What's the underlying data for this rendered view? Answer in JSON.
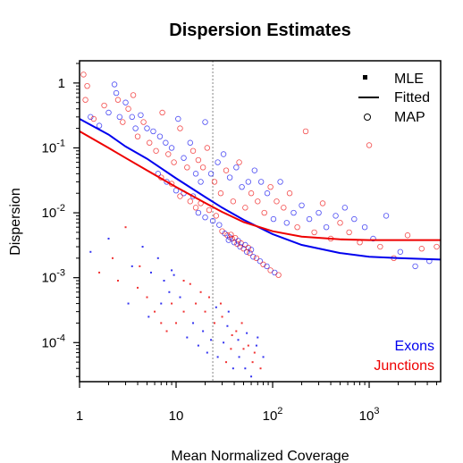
{
  "chart_data": {
    "type": "scatter",
    "title": "Dispersion Estimates",
    "xlabel": "Mean Normalized Coverage",
    "ylabel": "Dispersion",
    "x_scale": "log",
    "y_scale": "log",
    "xlim": [
      1,
      5500
    ],
    "ylim": [
      2.5e-05,
      2.2
    ],
    "x_ticks": [
      {
        "value": 1,
        "base": "1",
        "exp": ""
      },
      {
        "value": 10,
        "base": "10",
        "exp": ""
      },
      {
        "value": 100,
        "base": "10",
        "exp": "2"
      },
      {
        "value": 1000,
        "base": "10",
        "exp": "3"
      }
    ],
    "y_ticks": [
      {
        "value": 1,
        "base": "1",
        "exp": ""
      },
      {
        "value": 0.1,
        "base": "10",
        "exp": "-1"
      },
      {
        "value": 0.01,
        "base": "10",
        "exp": "-2"
      },
      {
        "value": 0.001,
        "base": "10",
        "exp": "-3"
      },
      {
        "value": 0.0001,
        "base": "10",
        "exp": "-4"
      }
    ],
    "reference_line_x": 24,
    "legend": {
      "position": "top-right",
      "entries": [
        {
          "symbol": "square",
          "label": "MLE"
        },
        {
          "symbol": "line",
          "label": "Fitted"
        },
        {
          "symbol": "circle",
          "label": "MAP"
        }
      ]
    },
    "group_labels": [
      {
        "label": "Exons",
        "color": "#0000ee"
      },
      {
        "label": "Junctions",
        "color": "#ee0000"
      }
    ],
    "series": [
      {
        "name": "Exons",
        "color": "#0000ee",
        "fitted": {
          "x": [
            1,
            2,
            3,
            5,
            10,
            20,
            30,
            50,
            100,
            200,
            500,
            1000,
            2000,
            5500
          ],
          "y": [
            0.28,
            0.16,
            0.105,
            0.068,
            0.034,
            0.0175,
            0.012,
            0.0078,
            0.0047,
            0.0032,
            0.0024,
            0.0021,
            0.002,
            0.0019
          ]
        }
      },
      {
        "name": "Junctions",
        "color": "#ee0000",
        "fitted": {
          "x": [
            1,
            2,
            3,
            5,
            10,
            20,
            30,
            50,
            100,
            200,
            500,
            1000,
            2000,
            5500
          ],
          "y": [
            0.18,
            0.1,
            0.07,
            0.045,
            0.025,
            0.0142,
            0.0103,
            0.0072,
            0.0052,
            0.0043,
            0.0039,
            0.0038,
            0.0038,
            0.0038
          ]
        }
      }
    ],
    "scatter_points": {
      "map_circles": [
        [
          1.1,
          1.35,
          "r"
        ],
        [
          1.2,
          0.9,
          "r"
        ],
        [
          1.15,
          0.55,
          "r"
        ],
        [
          1.3,
          0.3,
          "b"
        ],
        [
          1.4,
          0.28,
          "r"
        ],
        [
          1.6,
          0.22,
          "b"
        ],
        [
          1.8,
          0.45,
          "r"
        ],
        [
          2.0,
          0.35,
          "b"
        ],
        [
          2.3,
          0.95,
          "b"
        ],
        [
          2.4,
          0.7,
          "b"
        ],
        [
          2.5,
          0.55,
          "r"
        ],
        [
          2.6,
          0.3,
          "b"
        ],
        [
          2.8,
          0.25,
          "r"
        ],
        [
          3.0,
          0.5,
          "b"
        ],
        [
          3.2,
          0.4,
          "r"
        ],
        [
          3.5,
          0.3,
          "b"
        ],
        [
          3.6,
          0.65,
          "r"
        ],
        [
          3.8,
          0.2,
          "b"
        ],
        [
          4.0,
          0.15,
          "r"
        ],
        [
          4.3,
          0.32,
          "b"
        ],
        [
          4.6,
          0.25,
          "r"
        ],
        [
          5.0,
          0.2,
          "b"
        ],
        [
          5.3,
          0.12,
          "r"
        ],
        [
          5.8,
          0.18,
          "b"
        ],
        [
          6.2,
          0.09,
          "r"
        ],
        [
          6.8,
          0.15,
          "b"
        ],
        [
          7.2,
          0.35,
          "r"
        ],
        [
          7.8,
          0.12,
          "b"
        ],
        [
          8.3,
          0.08,
          "r"
        ],
        [
          9.0,
          0.1,
          "b"
        ],
        [
          9.5,
          0.06,
          "r"
        ],
        [
          10.5,
          0.28,
          "b"
        ],
        [
          11,
          0.2,
          "r"
        ],
        [
          12,
          0.07,
          "b"
        ],
        [
          13,
          0.05,
          "r"
        ],
        [
          14,
          0.12,
          "b"
        ],
        [
          15,
          0.09,
          "r"
        ],
        [
          16,
          0.04,
          "b"
        ],
        [
          17,
          0.065,
          "r"
        ],
        [
          18,
          0.03,
          "b"
        ],
        [
          19,
          0.05,
          "r"
        ],
        [
          20,
          0.25,
          "b"
        ],
        [
          21,
          0.1,
          "r"
        ],
        [
          23,
          0.04,
          "b"
        ],
        [
          25,
          0.03,
          "r"
        ],
        [
          27,
          0.06,
          "b"
        ],
        [
          29,
          0.02,
          "r"
        ],
        [
          31,
          0.08,
          "b"
        ],
        [
          33,
          0.045,
          "r"
        ],
        [
          36,
          0.035,
          "b"
        ],
        [
          39,
          0.015,
          "r"
        ],
        [
          42,
          0.05,
          "b"
        ],
        [
          45,
          0.06,
          "r"
        ],
        [
          48,
          0.025,
          "b"
        ],
        [
          52,
          0.012,
          "r"
        ],
        [
          56,
          0.03,
          "b"
        ],
        [
          60,
          0.02,
          "r"
        ],
        [
          65,
          0.045,
          "b"
        ],
        [
          70,
          0.015,
          "r"
        ],
        [
          76,
          0.03,
          "b"
        ],
        [
          82,
          0.01,
          "r"
        ],
        [
          88,
          0.02,
          "b"
        ],
        [
          95,
          0.025,
          "r"
        ],
        [
          102,
          0.008,
          "b"
        ],
        [
          110,
          0.015,
          "r"
        ],
        [
          120,
          0.03,
          "b"
        ],
        [
          130,
          0.012,
          "r"
        ],
        [
          140,
          0.007,
          "b"
        ],
        [
          150,
          0.02,
          "r"
        ],
        [
          165,
          0.01,
          "b"
        ],
        [
          180,
          0.006,
          "r"
        ],
        [
          200,
          0.013,
          "b"
        ],
        [
          220,
          0.18,
          "r"
        ],
        [
          240,
          0.008,
          "b"
        ],
        [
          270,
          0.005,
          "r"
        ],
        [
          300,
          0.01,
          "b"
        ],
        [
          330,
          0.014,
          "r"
        ],
        [
          360,
          0.006,
          "b"
        ],
        [
          400,
          0.004,
          "r"
        ],
        [
          450,
          0.009,
          "b"
        ],
        [
          500,
          0.007,
          "r"
        ],
        [
          560,
          0.012,
          "b"
        ],
        [
          620,
          0.005,
          "r"
        ],
        [
          700,
          0.008,
          "b"
        ],
        [
          800,
          0.0035,
          "r"
        ],
        [
          900,
          0.006,
          "b"
        ],
        [
          1000,
          0.11,
          "r"
        ],
        [
          1100,
          0.004,
          "b"
        ],
        [
          1300,
          0.003,
          "r"
        ],
        [
          1500,
          0.009,
          "b"
        ],
        [
          1800,
          0.002,
          "r"
        ],
        [
          2100,
          0.0025,
          "b"
        ],
        [
          2500,
          0.0045,
          "r"
        ],
        [
          3000,
          0.0015,
          "b"
        ],
        [
          3500,
          0.0028,
          "r"
        ],
        [
          4200,
          0.0018,
          "b"
        ],
        [
          5000,
          0.003,
          "r"
        ],
        [
          14,
          0.015,
          "r"
        ],
        [
          15,
          0.018,
          "b"
        ],
        [
          16,
          0.012,
          "r"
        ],
        [
          17,
          0.01,
          "b"
        ],
        [
          18,
          0.014,
          "r"
        ],
        [
          20,
          0.0085,
          "b"
        ],
        [
          22,
          0.011,
          "r"
        ],
        [
          24,
          0.0075,
          "b"
        ],
        [
          26,
          0.009,
          "r"
        ],
        [
          28,
          0.0065,
          "b"
        ],
        [
          30,
          0.0052,
          "r"
        ],
        [
          32,
          0.0048,
          "b"
        ],
        [
          34,
          0.0045,
          "r"
        ],
        [
          36,
          0.0042,
          "b"
        ],
        [
          38,
          0.004,
          "r"
        ],
        [
          40,
          0.0035,
          "b"
        ],
        [
          43,
          0.0033,
          "r"
        ],
        [
          46,
          0.003,
          "b"
        ],
        [
          50,
          0.0028,
          "r"
        ],
        [
          54,
          0.0025,
          "b"
        ],
        [
          58,
          0.0024,
          "r"
        ],
        [
          63,
          0.0021,
          "b"
        ],
        [
          68,
          0.002,
          "r"
        ],
        [
          74,
          0.0018,
          "b"
        ],
        [
          80,
          0.0016,
          "r"
        ],
        [
          87,
          0.0015,
          "b"
        ],
        [
          95,
          0.0013,
          "r"
        ],
        [
          105,
          0.0012,
          "b"
        ],
        [
          115,
          0.0011,
          "r"
        ],
        [
          12,
          0.02,
          "b"
        ],
        [
          11,
          0.018,
          "r"
        ],
        [
          10,
          0.022,
          "b"
        ],
        [
          9,
          0.028,
          "r"
        ],
        [
          8,
          0.03,
          "b"
        ],
        [
          7,
          0.035,
          "r"
        ],
        [
          6.5,
          0.04,
          "b"
        ],
        [
          35,
          0.0038,
          "b"
        ],
        [
          37,
          0.0046,
          "r"
        ],
        [
          41,
          0.0041,
          "r"
        ],
        [
          44,
          0.0037,
          "b"
        ],
        [
          47,
          0.0034,
          "r"
        ],
        [
          52,
          0.0032,
          "b"
        ],
        [
          56,
          0.0029,
          "r"
        ],
        [
          60,
          0.0027,
          "b"
        ]
      ],
      "mle_dots": [
        [
          1.3,
          0.0025,
          "b"
        ],
        [
          1.6,
          0.0012,
          "r"
        ],
        [
          2.0,
          0.004,
          "b"
        ],
        [
          2.5,
          0.0009,
          "r"
        ],
        [
          3.0,
          0.006,
          "r"
        ],
        [
          3.5,
          0.0015,
          "b"
        ],
        [
          4.0,
          0.0007,
          "r"
        ],
        [
          4.5,
          0.003,
          "b"
        ],
        [
          5.0,
          0.0005,
          "r"
        ],
        [
          5.5,
          0.0012,
          "b"
        ],
        [
          6.0,
          0.0003,
          "r"
        ],
        [
          6.5,
          0.002,
          "b"
        ],
        [
          7.0,
          0.0002,
          "r"
        ],
        [
          7.5,
          0.0009,
          "b"
        ],
        [
          8.0,
          0.00015,
          "r"
        ],
        [
          8.5,
          0.0006,
          "b"
        ],
        [
          9.0,
          0.0004,
          "r"
        ],
        [
          9.5,
          0.0011,
          "b"
        ],
        [
          10,
          0.0002,
          "r"
        ],
        [
          11,
          0.0005,
          "b"
        ],
        [
          12,
          0.0003,
          "r"
        ],
        [
          13,
          0.00012,
          "b"
        ],
        [
          14,
          0.0008,
          "r"
        ],
        [
          15,
          0.0002,
          "b"
        ],
        [
          16,
          0.0004,
          "r"
        ],
        [
          17,
          9e-05,
          "b"
        ],
        [
          18,
          0.0006,
          "r"
        ],
        [
          19,
          0.00015,
          "b"
        ],
        [
          20,
          0.0003,
          "r"
        ],
        [
          21,
          7e-05,
          "b"
        ],
        [
          22,
          0.0005,
          "r"
        ],
        [
          23,
          0.00011,
          "b"
        ],
        [
          25,
          0.0002,
          "r"
        ],
        [
          27,
          6e-05,
          "b"
        ],
        [
          29,
          0.0004,
          "r"
        ],
        [
          31,
          0.0001,
          "b"
        ],
        [
          33,
          5e-05,
          "r"
        ],
        [
          35,
          0.0003,
          "b"
        ],
        [
          37,
          8e-05,
          "r"
        ],
        [
          39,
          4e-05,
          "b"
        ],
        [
          42,
          0.00015,
          "r"
        ],
        [
          45,
          6e-05,
          "b"
        ],
        [
          48,
          0.0002,
          "r"
        ],
        [
          52,
          4e-05,
          "b"
        ],
        [
          56,
          9e-05,
          "r"
        ],
        [
          60,
          3e-05,
          "b"
        ],
        [
          65,
          7e-05,
          "r"
        ],
        [
          70,
          0.00012,
          "b"
        ],
        [
          75,
          4e-05,
          "r"
        ],
        [
          80,
          6e-05,
          "b"
        ],
        [
          12,
          0.0009,
          "r"
        ],
        [
          9,
          0.0013,
          "b"
        ],
        [
          7,
          0.0004,
          "b"
        ],
        [
          5.2,
          0.00025,
          "b"
        ],
        [
          4.2,
          0.0015,
          "r"
        ],
        [
          3.2,
          0.0004,
          "b"
        ],
        [
          2.2,
          0.002,
          "r"
        ],
        [
          26,
          0.00035,
          "b"
        ],
        [
          30,
          0.00025,
          "r"
        ],
        [
          34,
          0.00018,
          "b"
        ],
        [
          38,
          0.00013,
          "r"
        ],
        [
          44,
          0.00011,
          "b"
        ],
        [
          50,
          8e-05,
          "r"
        ],
        [
          54,
          0.00014,
          "b"
        ],
        [
          62,
          5e-05,
          "r"
        ],
        [
          68,
          9e-05,
          "b"
        ]
      ]
    }
  }
}
